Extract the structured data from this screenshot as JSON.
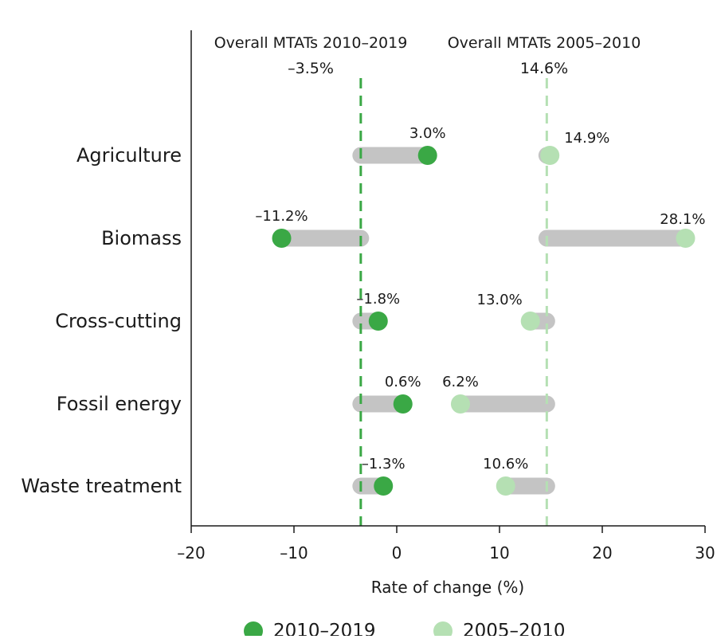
{
  "chart_data": {
    "type": "dumbbell",
    "xlabel": "Rate of change (%)",
    "xlim": [
      -20,
      30
    ],
    "xticks": [
      -20,
      -10,
      0,
      10,
      20,
      30
    ],
    "x_tick_labels": [
      "–20",
      "–10",
      "0",
      "10",
      "20",
      "30"
    ],
    "categories": [
      "Agriculture",
      "Biomass",
      "Cross-cutting",
      "Fossil energy",
      "Waste treatment"
    ],
    "series": [
      {
        "name": "2010–2019",
        "color": "#3aa845",
        "values": [
          3.0,
          -11.2,
          -1.8,
          0.6,
          -1.3
        ],
        "value_labels": [
          "3.0%",
          "–11.2%",
          "–1.8%",
          "0.6%",
          "–1.3%"
        ],
        "reference": {
          "label": "Overall MTATs 2010–2019",
          "value": -3.5,
          "value_label": "–3.5%"
        }
      },
      {
        "name": "2005–2010",
        "color": "#b5e0b3",
        "values": [
          14.9,
          28.1,
          13.0,
          6.2,
          10.6
        ],
        "value_labels": [
          "14.9%",
          "28.1%",
          "13.0%",
          "6.2%",
          "10.6%"
        ],
        "reference": {
          "label": "Overall MTATs 2005–2010",
          "value": 14.6,
          "value_label": "14.6%"
        }
      }
    ],
    "bar_color": "#c4c4c4",
    "grid": false,
    "legend_position": "bottom"
  }
}
